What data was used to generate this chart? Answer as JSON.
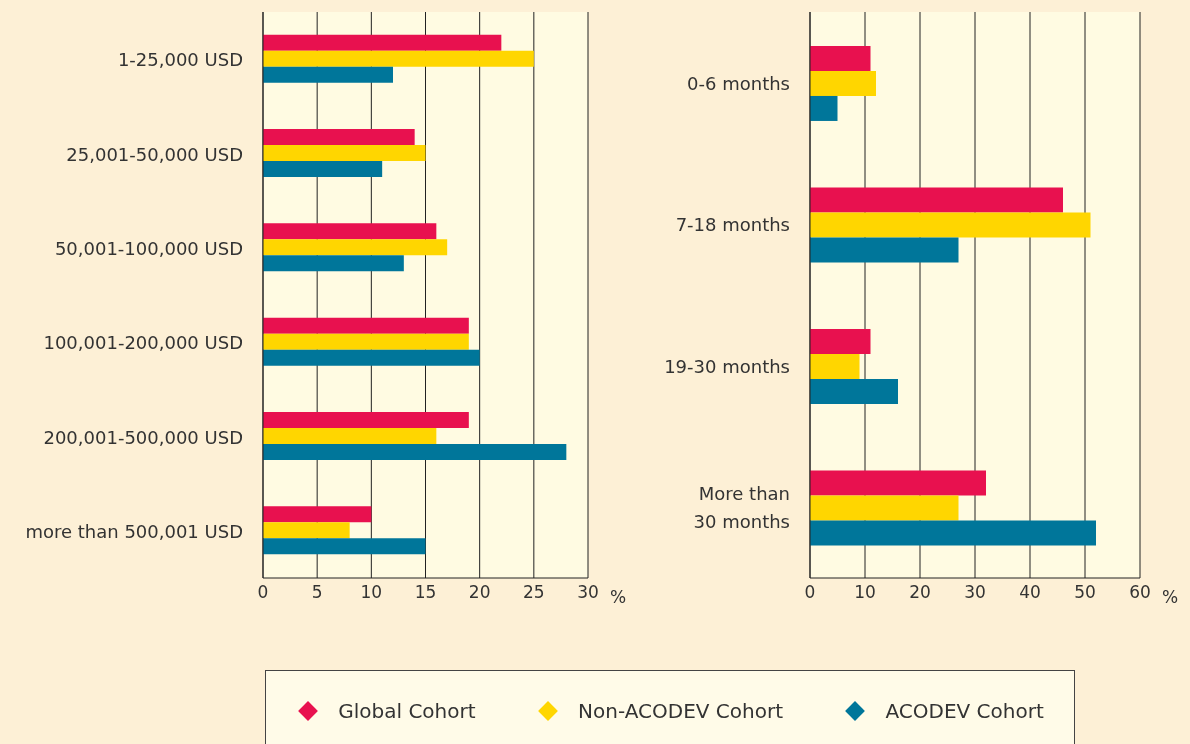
{
  "chart_data": [
    {
      "type": "bar",
      "orientation": "horizontal",
      "categories": [
        "1-25,000 USD",
        "25,001-50,000 USD",
        "50,001-100,000 USD",
        "100,001-200,000 USD",
        "200,001-500,000 USD",
        "more than 500,001 USD"
      ],
      "series": [
        {
          "name": "Global Cohort",
          "color": "#e8114f",
          "values": [
            22,
            14,
            16,
            19,
            19,
            10
          ]
        },
        {
          "name": "Non-ACODEV Cohort",
          "color": "#ffd600",
          "values": [
            25,
            15,
            17,
            19,
            16,
            8
          ]
        },
        {
          "name": "ACODEV Cohort",
          "color": "#00769a",
          "values": [
            12,
            11,
            13,
            20,
            28,
            15
          ]
        }
      ],
      "xlabel": "%",
      "xlim": [
        0,
        30
      ],
      "xticks": [
        0,
        5,
        10,
        15,
        20,
        25,
        30
      ],
      "grid": "x",
      "legend": "bottom"
    },
    {
      "type": "bar",
      "orientation": "horizontal",
      "categories": [
        "0-6 months",
        "7-18 months",
        "19-30 months",
        "More than 30 months"
      ],
      "series": [
        {
          "color": "#e8114f",
          "values": [
            11,
            46,
            11,
            32
          ]
        },
        {
          "color": "#ffd600",
          "values": [
            12,
            51,
            9,
            27
          ]
        },
        {
          "color": "#00769a",
          "values": [
            5,
            27,
            16,
            52
          ]
        }
      ],
      "xlabel": "%",
      "xlim": [
        0,
        60
      ],
      "xticks": [
        0,
        10,
        20,
        30,
        40,
        50,
        60
      ],
      "grid": "x"
    }
  ]
}
